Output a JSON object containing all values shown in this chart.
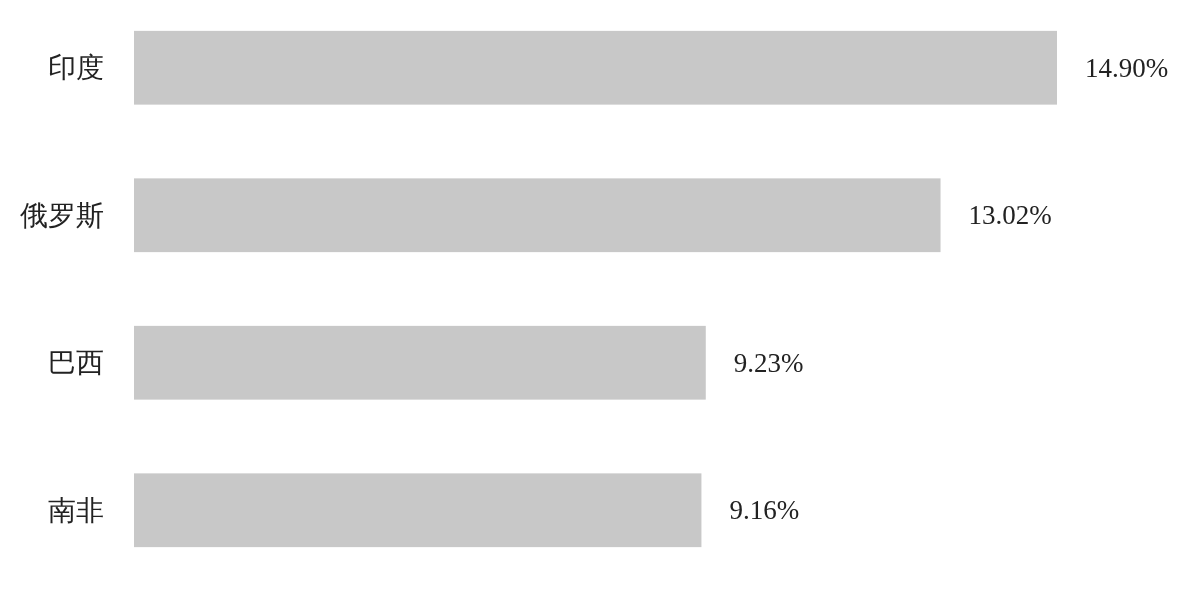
{
  "chart_data": {
    "type": "bar",
    "orientation": "horizontal",
    "categories": [
      "印度",
      "俄罗斯",
      "巴西",
      "南非"
    ],
    "values": [
      14.9,
      13.02,
      9.23,
      9.16
    ],
    "color": "#c8c8c8",
    "value_labels": [
      "14.90%",
      "13.02%",
      "9.23%",
      "9.16%"
    ]
  }
}
